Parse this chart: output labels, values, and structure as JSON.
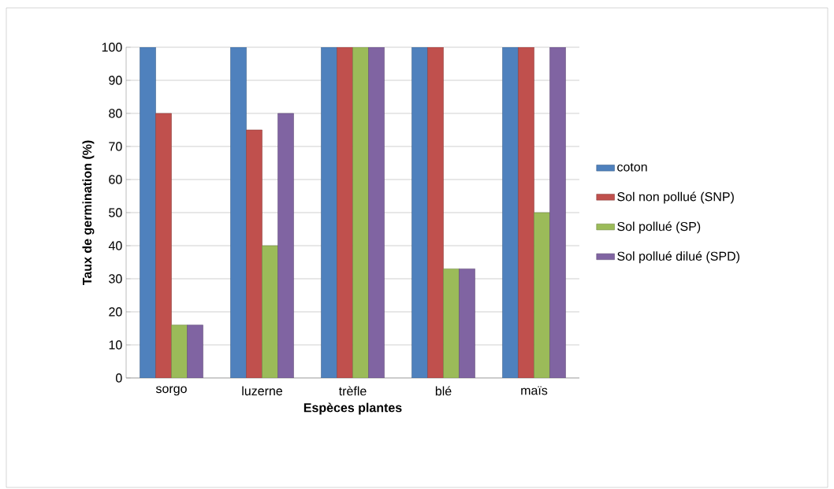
{
  "chart_data": {
    "type": "bar",
    "xlabel": "Espèces plantes",
    "ylabel": "Taux de germination (%)",
    "categories": [
      "sorgo",
      "luzerne",
      "trèfle",
      "blé",
      "maïs"
    ],
    "series": [
      {
        "name": "coton",
        "color": "#4f81bd",
        "values": [
          100,
          100,
          100,
          100,
          100
        ]
      },
      {
        "name": "Sol non pollué (SNP)",
        "color": "#c0504d",
        "values": [
          80,
          75,
          100,
          100,
          100
        ]
      },
      {
        "name": "Sol pollué (SP)",
        "color": "#9bbb59",
        "values": [
          16,
          40,
          100,
          33,
          50
        ]
      },
      {
        "name": "Sol pollué dilué (SPD)",
        "color": "#8064a2",
        "values": [
          16,
          80,
          100,
          33,
          100
        ]
      }
    ],
    "ylim": [
      0,
      100
    ],
    "yticks": [
      0,
      10,
      20,
      30,
      40,
      50,
      60,
      70,
      80,
      90,
      100
    ],
    "grid": "y",
    "legend": "right"
  }
}
